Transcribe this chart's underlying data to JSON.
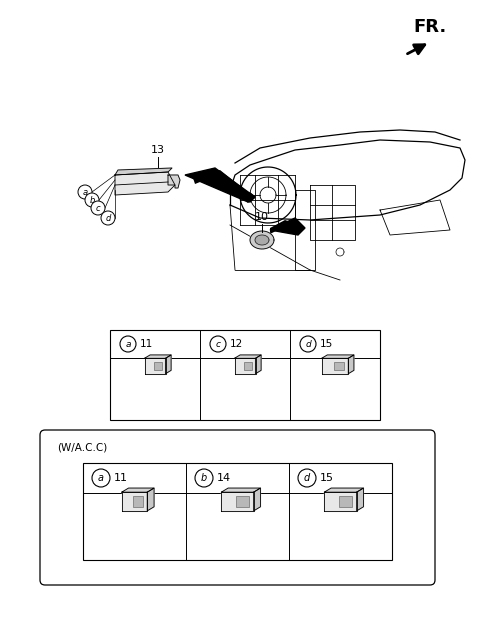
{
  "bg_color": "#ffffff",
  "fr_label": "FR.",
  "table1": {
    "cols": [
      {
        "circle_letter": "a",
        "number": "11"
      },
      {
        "circle_letter": "c",
        "number": "12"
      },
      {
        "circle_letter": "d",
        "number": "15"
      }
    ]
  },
  "table2": {
    "title": "(W/A.C.C)",
    "cols": [
      {
        "circle_letter": "a",
        "number": "11"
      },
      {
        "circle_letter": "b",
        "number": "14"
      },
      {
        "circle_letter": "d",
        "number": "15"
      }
    ]
  },
  "label_13": "13",
  "label_10": "10",
  "callout_letters": [
    "a",
    "b",
    "c",
    "d"
  ]
}
